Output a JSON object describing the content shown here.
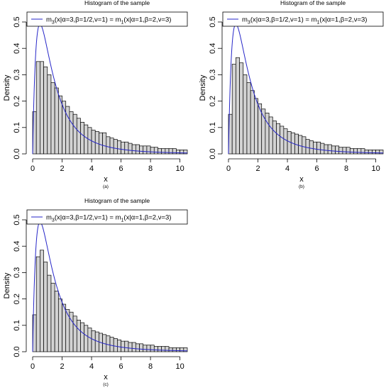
{
  "colors": {
    "bar_fill": "#d3d3d3",
    "bar_stroke": "#000000",
    "curve": "#2626c8"
  },
  "chart_data": [
    {
      "type": "bar",
      "panel": "(a)",
      "title": "Histogram of the sample",
      "xlabel": "x",
      "ylabel": "Density",
      "xlim": [
        0,
        10.5
      ],
      "ylim": [
        0,
        0.5
      ],
      "xticks": [
        "0",
        "2",
        "4",
        "6",
        "8",
        "10"
      ],
      "yticks": [
        "0.0",
        "0.1",
        "0.2",
        "0.3",
        "0.4",
        "0.5"
      ],
      "bin_width": 0.25,
      "bin_start": 0,
      "values": [
        0.16,
        0.35,
        0.35,
        0.33,
        0.3,
        0.27,
        0.25,
        0.22,
        0.2,
        0.18,
        0.16,
        0.15,
        0.135,
        0.12,
        0.11,
        0.1,
        0.09,
        0.085,
        0.08,
        0.08,
        0.065,
        0.06,
        0.055,
        0.05,
        0.045,
        0.045,
        0.04,
        0.035,
        0.035,
        0.03,
        0.03,
        0.03,
        0.025,
        0.025,
        0.02,
        0.02,
        0.02,
        0.02,
        0.02,
        0.015,
        0.015,
        0.015
      ],
      "legend": {
        "position": "top-right",
        "label_parts": [
          {
            "t": "m"
          },
          {
            "t": "3",
            "sub": true
          },
          {
            "t": "(x|α=3,β=1/2,ν=1) = m"
          },
          {
            "t": "1",
            "sub": true
          },
          {
            "t": "(x|α=1,β=2,ν=3)"
          }
        ]
      },
      "curve": {
        "alpha": 1,
        "beta": 2,
        "nu": 3
      }
    },
    {
      "type": "bar",
      "panel": "(b)",
      "title": "Histogram of the sample",
      "xlabel": "x",
      "ylabel": "Density",
      "xlim": [
        0,
        10.5
      ],
      "ylim": [
        0,
        0.5
      ],
      "xticks": [
        "0",
        "2",
        "4",
        "6",
        "8",
        "10"
      ],
      "yticks": [
        "0.0",
        "0.1",
        "0.2",
        "0.3",
        "0.4",
        "0.5"
      ],
      "bin_width": 0.25,
      "bin_start": 0,
      "values": [
        0.15,
        0.34,
        0.365,
        0.345,
        0.3,
        0.27,
        0.24,
        0.21,
        0.19,
        0.17,
        0.155,
        0.14,
        0.125,
        0.115,
        0.105,
        0.095,
        0.085,
        0.08,
        0.075,
        0.07,
        0.065,
        0.055,
        0.05,
        0.045,
        0.045,
        0.04,
        0.035,
        0.035,
        0.03,
        0.03,
        0.025,
        0.025,
        0.025,
        0.02,
        0.02,
        0.02,
        0.02,
        0.015,
        0.015,
        0.015,
        0.015,
        0.015
      ],
      "legend": {
        "position": "top-right",
        "label_parts": [
          {
            "t": "m"
          },
          {
            "t": "3",
            "sub": true
          },
          {
            "t": "(x|α=3,β=1/2,ν=1) = m"
          },
          {
            "t": "1",
            "sub": true
          },
          {
            "t": "(x|α=1,β=2,ν=3)"
          }
        ]
      },
      "curve": {
        "alpha": 1,
        "beta": 2,
        "nu": 3
      }
    },
    {
      "type": "bar",
      "panel": "(c)",
      "title": "Histogram of the sample",
      "xlabel": "x",
      "ylabel": "Density",
      "xlim": [
        0,
        10.5
      ],
      "ylim": [
        0,
        0.5
      ],
      "xticks": [
        "0",
        "2",
        "4",
        "6",
        "8",
        "10"
      ],
      "yticks": [
        "0.0",
        "0.1",
        "0.2",
        "0.3",
        "0.4",
        "0.5"
      ],
      "bin_width": 0.25,
      "bin_start": 0,
      "values": [
        0.14,
        0.36,
        0.385,
        0.34,
        0.29,
        0.26,
        0.23,
        0.2,
        0.18,
        0.16,
        0.15,
        0.135,
        0.12,
        0.11,
        0.1,
        0.09,
        0.08,
        0.075,
        0.07,
        0.065,
        0.06,
        0.055,
        0.05,
        0.045,
        0.04,
        0.04,
        0.035,
        0.035,
        0.03,
        0.03,
        0.025,
        0.025,
        0.025,
        0.02,
        0.02,
        0.02,
        0.02,
        0.015,
        0.015,
        0.015,
        0.015,
        0.015
      ],
      "legend": {
        "position": "top-right",
        "label_parts": [
          {
            "t": "m"
          },
          {
            "t": "3",
            "sub": true
          },
          {
            "t": "(x|α=3,β=1/2,ν=1) = m"
          },
          {
            "t": "1",
            "sub": true
          },
          {
            "t": "(x|α=1,β=2,ν=3)"
          }
        ]
      },
      "curve": {
        "alpha": 1,
        "beta": 2,
        "nu": 3
      }
    }
  ]
}
